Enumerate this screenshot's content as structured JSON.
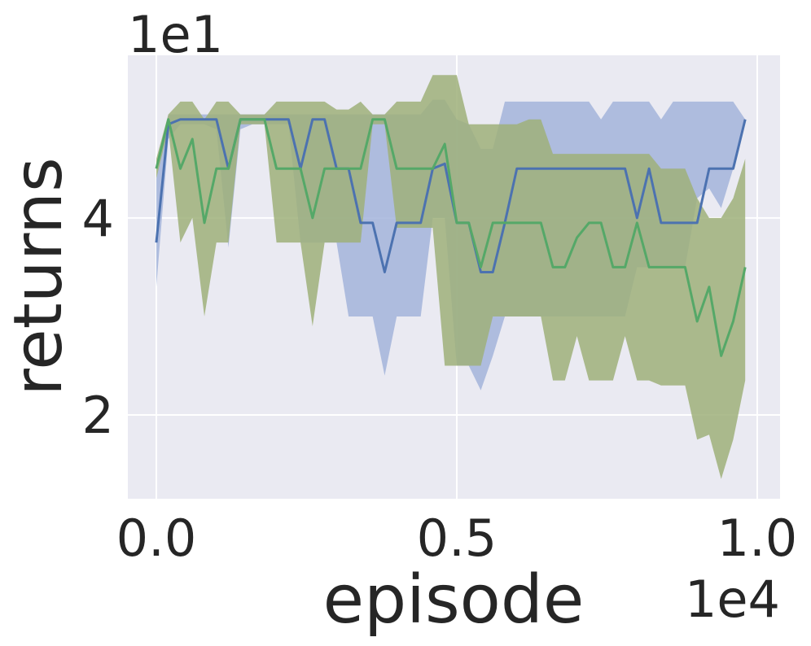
{
  "chart_data": {
    "type": "line",
    "xlabel": "episode",
    "ylabel": "returns",
    "x_offset_label": "1e4",
    "y_offset_label": "1e1",
    "background": "#eaeaf2",
    "grid": true,
    "xlim": [
      -0.0474,
      1.038
    ],
    "ylim": [
      1.15,
      5.65
    ],
    "xticks": [
      {
        "value": 0,
        "label": "0.0"
      },
      {
        "value": 0.5,
        "label": "0.5"
      },
      {
        "value": 1,
        "label": "1.0"
      }
    ],
    "yticks": [
      2,
      4
    ],
    "x": [
      0,
      0.02,
      0.04,
      0.06,
      0.08,
      0.1,
      0.12,
      0.14,
      0.16,
      0.18,
      0.2,
      0.22,
      0.24,
      0.26,
      0.28,
      0.3,
      0.32,
      0.34,
      0.36,
      0.38,
      0.4,
      0.42,
      0.44,
      0.46,
      0.48,
      0.5,
      0.52,
      0.54,
      0.56,
      0.58,
      0.6,
      0.62,
      0.64,
      0.66,
      0.68,
      0.7,
      0.72,
      0.74,
      0.76,
      0.78,
      0.8,
      0.82,
      0.84,
      0.86,
      0.88,
      0.9,
      0.92,
      0.94,
      0.96,
      0.98
    ],
    "series": [
      {
        "color": "#4c72b0",
        "band_color": "#a3b4da",
        "values": [
          3.75,
          4.95,
          5,
          5,
          5,
          5,
          4.5,
          5,
          5,
          5,
          5,
          5,
          4.5,
          5,
          5,
          4.5,
          4.5,
          3.95,
          3.95,
          3.45,
          3.95,
          3.95,
          3.95,
          4.5,
          4.55,
          3.95,
          3.95,
          3.45,
          3.45,
          3.95,
          4.5,
          4.5,
          4.5,
          4.5,
          4.5,
          4.5,
          4.5,
          4.5,
          4.5,
          4.5,
          4.0,
          4.5,
          3.95,
          3.95,
          3.95,
          3.95,
          4.5,
          4.5,
          4.5,
          5
        ],
        "upper": [
          4.4,
          5.05,
          5.05,
          5.05,
          5.05,
          5.05,
          5.05,
          5.05,
          5.05,
          5.05,
          5.05,
          5.05,
          5.05,
          5.05,
          5.05,
          5.05,
          5.05,
          5.05,
          5.05,
          5.05,
          5.05,
          5.05,
          5.05,
          5.2,
          5.2,
          5.0,
          4.95,
          4.7,
          4.7,
          5.18,
          5.18,
          5.18,
          5.18,
          5.18,
          5.18,
          5.18,
          5.18,
          5.0,
          5.18,
          5.18,
          5.18,
          5.18,
          5.0,
          5.18,
          5.18,
          5.18,
          5.18,
          5.18,
          5.18,
          5.0
        ],
        "lower": [
          3.3,
          4.8,
          4.95,
          4.95,
          4.95,
          4.9,
          3.7,
          4.9,
          4.95,
          4.95,
          4.95,
          4.95,
          3.75,
          3.75,
          3.75,
          3.75,
          3.0,
          3.0,
          3.0,
          2.4,
          3.0,
          3.0,
          3.0,
          4.0,
          4.0,
          2.5,
          2.5,
          2.25,
          2.6,
          3.0,
          3.0,
          3.0,
          3.0,
          3.0,
          3.0,
          3.0,
          3.0,
          3.0,
          3.0,
          3.0,
          3.5,
          3.5,
          3.5,
          3.5,
          3.5,
          4.2,
          4.3,
          4.1,
          4.5,
          5.0
        ]
      },
      {
        "color": "#55a868",
        "band_color": "#9fb07a",
        "values": [
          4.5,
          5.0,
          4.5,
          4.8,
          3.95,
          4.5,
          4.5,
          5,
          5,
          5,
          4.5,
          4.5,
          4.5,
          4.0,
          4.5,
          4.5,
          4.5,
          4.5,
          5,
          5,
          4.5,
          4.5,
          4.5,
          4.5,
          4.75,
          3.95,
          3.95,
          3.5,
          3.95,
          3.95,
          3.95,
          3.95,
          3.95,
          3.5,
          3.5,
          3.8,
          3.95,
          3.95,
          3.5,
          3.5,
          3.95,
          3.5,
          3.5,
          3.5,
          3.5,
          2.95,
          3.3,
          2.6,
          2.95,
          3.5
        ],
        "upper": [
          4.6,
          5.05,
          5.18,
          5.18,
          5.0,
          5.18,
          5.18,
          5.05,
          5.05,
          5.05,
          5.18,
          5.18,
          5.18,
          5.18,
          5.18,
          5.1,
          5.1,
          5.18,
          5.05,
          5.05,
          5.18,
          5.18,
          5.18,
          5.45,
          5.45,
          5.45,
          4.95,
          4.95,
          4.95,
          4.95,
          4.95,
          5.0,
          5.0,
          4.65,
          4.65,
          4.65,
          4.65,
          4.65,
          4.65,
          4.65,
          4.65,
          4.65,
          4.5,
          4.5,
          4.5,
          4.2,
          4.0,
          4.0,
          4.2,
          4.6
        ],
        "lower": [
          4.4,
          4.9,
          3.75,
          4.0,
          3.0,
          3.75,
          3.75,
          4.95,
          4.95,
          4.95,
          3.75,
          3.75,
          3.75,
          2.9,
          3.75,
          3.75,
          3.75,
          3.75,
          4.95,
          4.95,
          3.9,
          3.9,
          3.9,
          3.9,
          2.5,
          2.5,
          2.5,
          2.5,
          3.0,
          3.0,
          3.0,
          3.0,
          3.0,
          2.35,
          2.35,
          2.8,
          2.35,
          2.35,
          2.35,
          2.8,
          2.35,
          2.35,
          2.3,
          2.3,
          2.3,
          1.75,
          1.8,
          1.35,
          1.75,
          2.35
        ]
      }
    ]
  }
}
